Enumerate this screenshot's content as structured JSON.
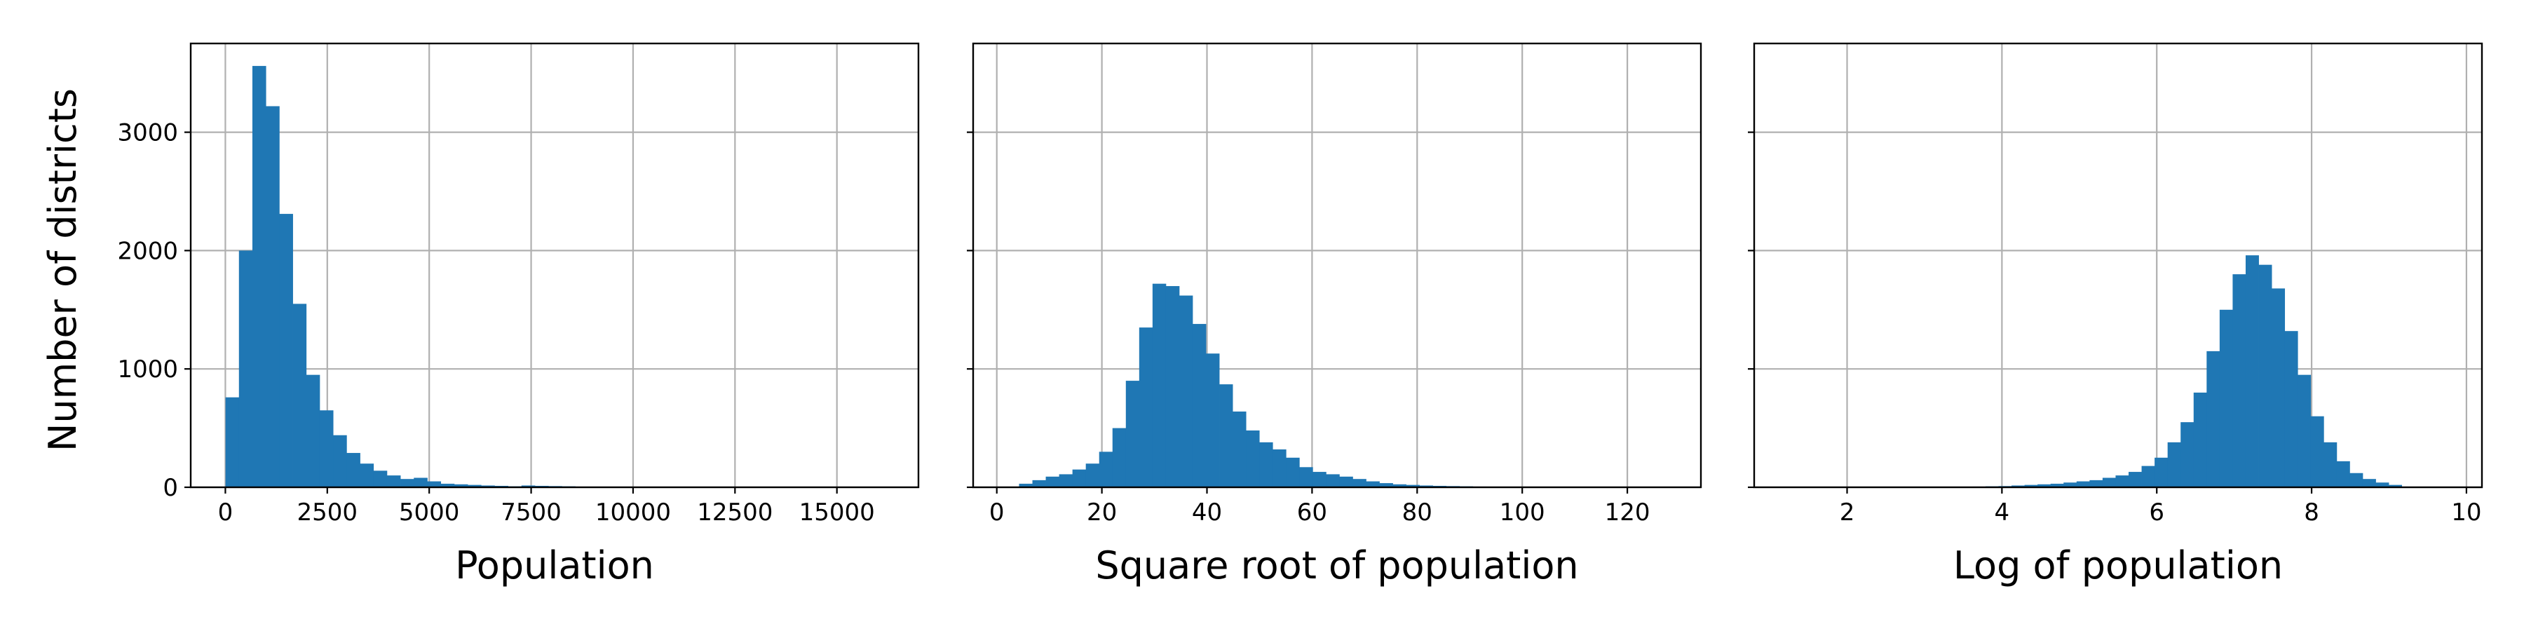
{
  "colors": {
    "bar": "#1f77b4",
    "grid": "#b0b0b0",
    "frame": "#000000"
  },
  "chart_data": [
    {
      "type": "bar",
      "title": "",
      "xlabel": "Population",
      "ylabel": "Number of districts",
      "xlim": [
        -850,
        17000
      ],
      "ylim": [
        0,
        3750
      ],
      "grid": true,
      "xticks": [
        0,
        2500,
        5000,
        7500,
        10000,
        12500,
        15000
      ],
      "xtick_labels": [
        "0",
        "2500",
        "5000",
        "7500",
        "10000",
        "12500",
        "15000"
      ],
      "yticks": [
        0,
        1000,
        2000,
        3000
      ],
      "ytick_labels": [
        "0",
        "1000",
        "2000",
        "3000"
      ],
      "bin_start": 3,
      "bin_width": 330,
      "values": [
        760,
        2000,
        3560,
        3220,
        2310,
        1550,
        950,
        650,
        440,
        290,
        200,
        140,
        100,
        70,
        80,
        50,
        30,
        25,
        20,
        15,
        12,
        8,
        15,
        12,
        10,
        8,
        5,
        4,
        3,
        2,
        2,
        2,
        1,
        1,
        1,
        1,
        1,
        1,
        0,
        0,
        0,
        0,
        0,
        0,
        0,
        0,
        0,
        0,
        0,
        1
      ]
    },
    {
      "type": "bar",
      "title": "",
      "xlabel": "Square root of population",
      "ylabel": "",
      "xlim": [
        -4.5,
        134
      ],
      "ylim": [
        0,
        3750
      ],
      "grid": true,
      "xticks": [
        0,
        20,
        40,
        60,
        80,
        100,
        120
      ],
      "xtick_labels": [
        "0",
        "20",
        "40",
        "60",
        "80",
        "100",
        "120"
      ],
      "yticks": [
        0,
        1000,
        2000,
        3000
      ],
      "ytick_labels": [
        "",
        "",
        "",
        ""
      ],
      "bin_start": 1.7,
      "bin_width": 2.54,
      "values": [
        3,
        30,
        60,
        90,
        110,
        150,
        200,
        300,
        500,
        900,
        1350,
        1720,
        1700,
        1620,
        1380,
        1130,
        870,
        640,
        480,
        380,
        320,
        250,
        170,
        130,
        110,
        90,
        70,
        50,
        35,
        25,
        20,
        15,
        12,
        10,
        8,
        6,
        5,
        4,
        3,
        2,
        2,
        1,
        1,
        1,
        1,
        1,
        1,
        0,
        0,
        1
      ]
    },
    {
      "type": "bar",
      "title": "",
      "xlabel": "Log of population",
      "ylabel": "",
      "xlim": [
        0.8,
        10.2
      ],
      "ylim": [
        0,
        3750
      ],
      "grid": true,
      "xticks": [
        2,
        4,
        6,
        8,
        10
      ],
      "xtick_labels": [
        "2",
        "4",
        "6",
        "8",
        "10"
      ],
      "yticks": [
        0,
        1000,
        2000,
        3000
      ],
      "ytick_labels": [
        "",
        "",
        "",
        ""
      ],
      "bin_start": 1.1,
      "bin_width": 0.168,
      "values": [
        1,
        0,
        0,
        0,
        0,
        0,
        0,
        0,
        0,
        0,
        0,
        0,
        1,
        2,
        4,
        6,
        8,
        10,
        15,
        20,
        25,
        30,
        40,
        50,
        60,
        80,
        100,
        130,
        180,
        250,
        380,
        550,
        800,
        1150,
        1500,
        1800,
        1960,
        1880,
        1680,
        1320,
        950,
        600,
        380,
        220,
        120,
        70,
        40,
        20,
        5,
        3
      ]
    }
  ]
}
